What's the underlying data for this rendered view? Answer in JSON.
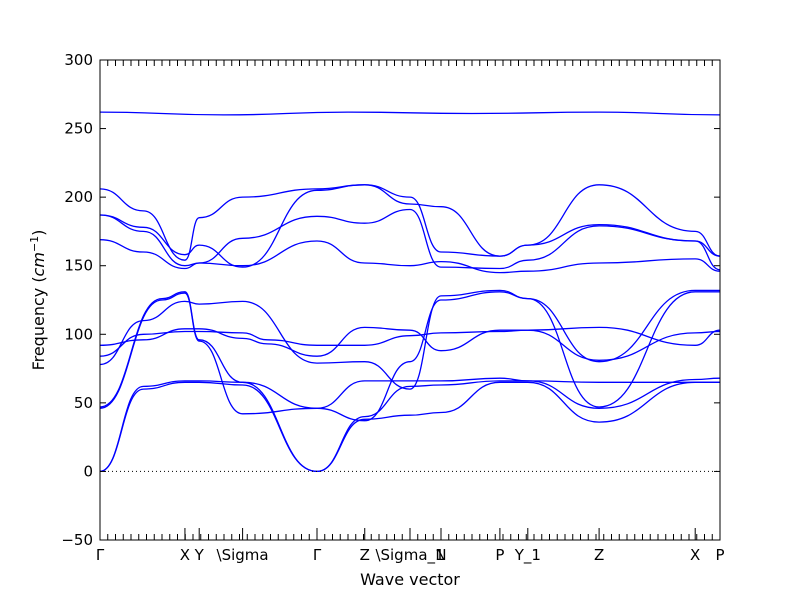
{
  "chart_data": {
    "type": "line",
    "title": "",
    "xlabel": "Wave vector",
    "ylabel_text": "Frequency (",
    "ylabel_unit_base": "cm",
    "ylabel_unit_exp": "−1",
    "ylabel_close": ")",
    "ylim": [
      -50,
      300
    ],
    "yticks": [
      -50,
      0,
      50,
      100,
      150,
      200,
      250,
      300
    ],
    "xlim": [
      0,
      1
    ],
    "grid": false,
    "legend": "none",
    "line_color": "#0000ff",
    "zero_line": {
      "y": 0,
      "style": "dotted",
      "color": "#000000"
    },
    "high_symmetry_points": [
      {
        "label": "Γ",
        "x": 0.0
      },
      {
        "label": "X",
        "x": 0.137
      },
      {
        "label": "Y",
        "x": 0.16
      },
      {
        "label": "\\Sigma",
        "x": 0.23
      },
      {
        "label": "Γ",
        "x": 0.35
      },
      {
        "label": "Z",
        "x": 0.427
      },
      {
        "label": "\\Sigma_1",
        "x": 0.5
      },
      {
        "label": "N",
        "x": 0.55
      },
      {
        "label": "P",
        "x": 0.645
      },
      {
        "label": "Y_1",
        "x": 0.69
      },
      {
        "label": "Z",
        "x": 0.805
      },
      {
        "label": "X",
        "x": 0.96
      },
      {
        "label": "P",
        "x": 1.0
      }
    ],
    "series": [
      {
        "x": [
          0,
          0.07,
          0.137,
          0.16,
          0.23,
          0.35,
          0.427,
          0.5,
          0.55,
          0.645,
          0.69,
          0.805,
          0.96,
          1.0
        ],
        "values": [
          0,
          60,
          65,
          65,
          63,
          0,
          38,
          41,
          43,
          65,
          65,
          36,
          65,
          65
        ]
      },
      {
        "x": [
          0,
          0.07,
          0.137,
          0.16,
          0.23,
          0.35,
          0.427,
          0.5,
          0.55,
          0.645,
          0.69,
          0.805,
          0.96,
          1.0
        ],
        "values": [
          0,
          62,
          66,
          66,
          65,
          0,
          40,
          62,
          63,
          66,
          66,
          46,
          67,
          68
        ]
      },
      {
        "x": [
          0,
          0.1,
          0.137,
          0.16,
          0.23,
          0.35,
          0.427,
          0.5,
          0.55,
          0.645,
          0.69,
          0.805,
          0.96,
          1.0
        ],
        "values": [
          46,
          125,
          130,
          95,
          42,
          46,
          66,
          66,
          66,
          68,
          66,
          65,
          65,
          65
        ]
      },
      {
        "x": [
          0,
          0.1,
          0.137,
          0.16,
          0.23,
          0.35,
          0.427,
          0.5,
          0.55,
          0.645,
          0.69,
          0.805,
          0.96,
          1.0
        ],
        "values": [
          47,
          126,
          131,
          96,
          65,
          46,
          37,
          80,
          125,
          131,
          126,
          47,
          131,
          131
        ]
      },
      {
        "x": [
          0,
          0.07,
          0.137,
          0.16,
          0.23,
          0.35,
          0.427,
          0.5,
          0.55,
          0.645,
          0.69,
          0.805,
          0.96,
          1.0
        ],
        "values": [
          78,
          110,
          124,
          122,
          124,
          79,
          80,
          60,
          128,
          132,
          126,
          80,
          132,
          132
        ]
      },
      {
        "x": [
          0,
          0.07,
          0.137,
          0.16,
          0.23,
          0.27,
          0.35,
          0.427,
          0.5,
          0.55,
          0.645,
          0.69,
          0.805,
          0.96,
          1.0
        ],
        "values": [
          84,
          100,
          102,
          102,
          101,
          96,
          92,
          92,
          99,
          101,
          102,
          103,
          105,
          92,
          103
        ]
      },
      {
        "x": [
          0,
          0.07,
          0.137,
          0.16,
          0.23,
          0.27,
          0.35,
          0.427,
          0.5,
          0.55,
          0.645,
          0.69,
          0.805,
          0.96,
          1.0
        ],
        "values": [
          92,
          96,
          104,
          104,
          97,
          93,
          84,
          105,
          103,
          88,
          103,
          103,
          81,
          101,
          102
        ]
      },
      {
        "x": [
          0,
          0.07,
          0.137,
          0.16,
          0.23,
          0.35,
          0.427,
          0.5,
          0.55,
          0.645,
          0.69,
          0.805,
          0.96,
          1.0
        ],
        "values": [
          169,
          160,
          148,
          152,
          150,
          168,
          152,
          150,
          153,
          145,
          146,
          152,
          155,
          146
        ]
      },
      {
        "x": [
          0,
          0.07,
          0.137,
          0.16,
          0.23,
          0.35,
          0.427,
          0.5,
          0.55,
          0.645,
          0.69,
          0.805,
          0.96,
          1.0
        ],
        "values": [
          187,
          175,
          150,
          152,
          170,
          186,
          181,
          191,
          149,
          148,
          154,
          179,
          168,
          147
        ]
      },
      {
        "x": [
          0,
          0.07,
          0.137,
          0.16,
          0.23,
          0.35,
          0.427,
          0.5,
          0.55,
          0.645,
          0.69,
          0.805,
          0.96,
          1.0
        ],
        "values": [
          187,
          178,
          158,
          165,
          149,
          205,
          209,
          200,
          160,
          157,
          165,
          209,
          175,
          157
        ]
      },
      {
        "x": [
          0,
          0.07,
          0.137,
          0.16,
          0.23,
          0.35,
          0.427,
          0.5,
          0.55,
          0.645,
          0.69,
          0.805,
          0.96,
          1.0
        ],
        "values": [
          206,
          190,
          154,
          185,
          200,
          206,
          209,
          195,
          193,
          157,
          165,
          180,
          168,
          157
        ]
      },
      {
        "x": [
          0,
          0.2,
          0.4,
          0.6,
          0.805,
          1.0
        ],
        "values": [
          262,
          260,
          262,
          261,
          262,
          260
        ]
      }
    ]
  }
}
